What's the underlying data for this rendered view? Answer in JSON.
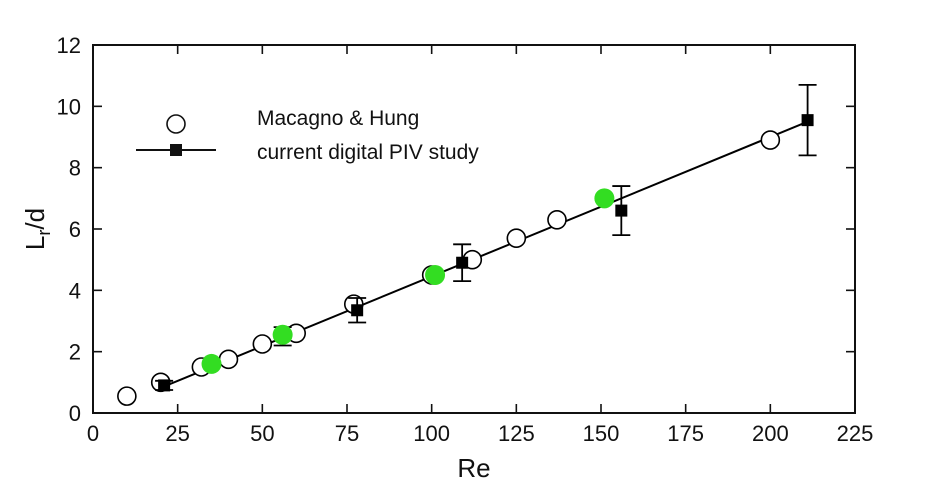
{
  "chart_data": {
    "type": "scatter",
    "xlabel": "Re",
    "ylabel_main": "L",
    "ylabel_sub": "r",
    "ylabel_tail": "/d",
    "xlim": [
      0,
      225
    ],
    "ylim": [
      0,
      12
    ],
    "x_ticks": [
      "0",
      "25",
      "50",
      "75",
      "100",
      "125",
      "150",
      "175",
      "200",
      "225"
    ],
    "y_ticks": [
      "0",
      "2",
      "4",
      "6",
      "8",
      "10",
      "12"
    ],
    "grid": false,
    "legend_position": "top-left",
    "series": [
      {
        "name": "Macagno & Hung",
        "marker": "open-circle",
        "color": "#000000",
        "points": [
          {
            "x": 10,
            "y": 0.55
          },
          {
            "x": 20,
            "y": 1.0
          },
          {
            "x": 32,
            "y": 1.5
          },
          {
            "x": 40,
            "y": 1.75
          },
          {
            "x": 50,
            "y": 2.25
          },
          {
            "x": 60,
            "y": 2.6
          },
          {
            "x": 77,
            "y": 3.55
          },
          {
            "x": 100,
            "y": 4.5
          },
          {
            "x": 112,
            "y": 5.0
          },
          {
            "x": 125,
            "y": 5.7
          },
          {
            "x": 137,
            "y": 6.3
          },
          {
            "x": 200,
            "y": 8.9
          }
        ]
      },
      {
        "name": "current digital PIV study",
        "marker": "filled-square",
        "color": "#000000",
        "points": [
          {
            "x": 21,
            "y": 0.9,
            "err": 0.15
          },
          {
            "x": 56,
            "y": 2.5,
            "err": 0.3
          },
          {
            "x": 78,
            "y": 3.35,
            "err": 0.4
          },
          {
            "x": 109,
            "y": 4.9,
            "err": 0.6
          },
          {
            "x": 156,
            "y": 6.6,
            "err": 0.8
          },
          {
            "x": 211,
            "y": 9.55,
            "err": 1.15
          }
        ]
      },
      {
        "marker": "green-dot",
        "color": "#33dd22",
        "points": [
          {
            "x": 35,
            "y": 1.6
          },
          {
            "x": 56,
            "y": 2.55
          },
          {
            "x": 101,
            "y": 4.5
          },
          {
            "x": 151,
            "y": 7.0
          }
        ]
      }
    ],
    "fit_line": {
      "x": [
        20,
        211
      ],
      "y": [
        0.82,
        9.5
      ],
      "color": "#000000"
    }
  }
}
